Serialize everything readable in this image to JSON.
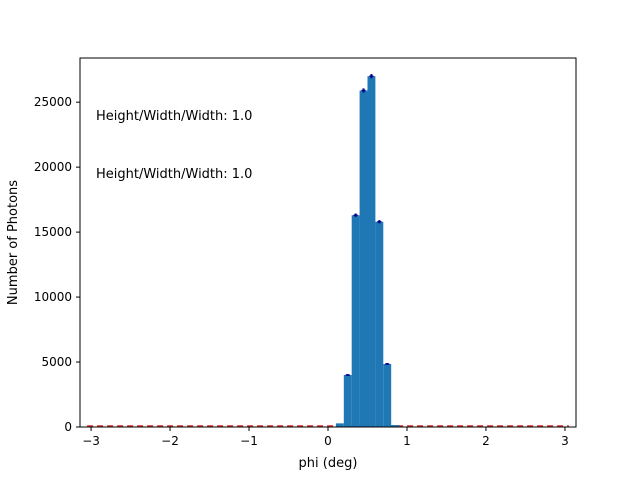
{
  "chart_data": {
    "type": "bar",
    "xlabel": "phi (deg)",
    "ylabel": "Number of Photons",
    "xlim": [
      -3.14,
      3.14
    ],
    "ylim": [
      0,
      28400
    ],
    "xticks": [
      -3,
      -2,
      -1,
      0,
      1,
      2,
      3
    ],
    "xtick_labels": [
      "−3",
      "−2",
      "−1",
      "0",
      "1",
      "2",
      "3"
    ],
    "yticks": [
      0,
      5000,
      10000,
      15000,
      20000,
      25000
    ],
    "ytick_labels": [
      "0",
      "5000",
      "10000",
      "15000",
      "20000",
      "25000"
    ],
    "bin_width": 0.1,
    "bins": [
      {
        "x0": 0.1,
        "value": 280,
        "error": 0
      },
      {
        "x0": 0.2,
        "value": 4000,
        "error": 70
      },
      {
        "x0": 0.3,
        "value": 16300,
        "error": 130
      },
      {
        "x0": 0.4,
        "value": 25900,
        "error": 160
      },
      {
        "x0": 0.5,
        "value": 27000,
        "error": 165
      },
      {
        "x0": 0.6,
        "value": 15800,
        "error": 125
      },
      {
        "x0": 0.7,
        "value": 4850,
        "error": 70
      },
      {
        "x0": 0.8,
        "value": 150,
        "error": 0
      }
    ],
    "baseline": {
      "value": 0,
      "style": "dashed",
      "color": "#d62728"
    },
    "grid": false,
    "annotations": [
      {
        "text": "Height/Width/Width: 1.0"
      },
      {
        "text": "Height/Width/Width: 1.0"
      }
    ],
    "colors": {
      "bar": "#1f77b4",
      "error_bar": "#00008b"
    }
  }
}
